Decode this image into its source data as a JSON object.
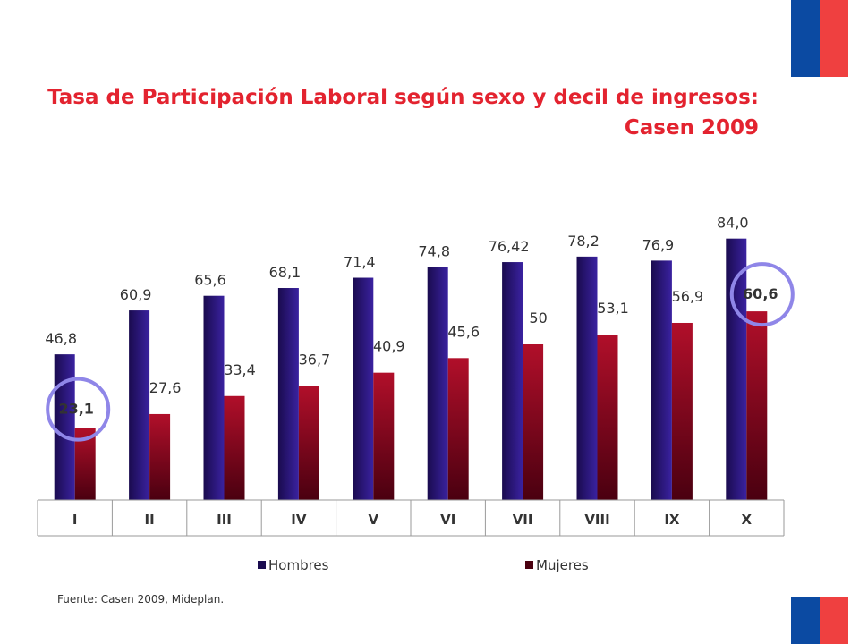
{
  "title": {
    "line1": "Tasa de Participación Laboral según sexo y decil de ingresos:",
    "line2": "Casen 2009"
  },
  "source": "Fuente: Casen 2009, Mideplan.",
  "colors": {
    "title": "#e3232f",
    "hombres_dark": "#1a0b4f",
    "hombres_light": "#3a22a0",
    "mujeres_dark": "#4a0010",
    "mujeres_light": "#b10f2a",
    "highlight_circle": "#8f86e8",
    "flag_blue": "#0b4aa2",
    "flag_red": "#ef4040"
  },
  "chart_data": {
    "type": "bar",
    "categories": [
      "I",
      "II",
      "III",
      "IV",
      "V",
      "VI",
      "VII",
      "VIII",
      "IX",
      "X"
    ],
    "series": [
      {
        "name": "Hombres",
        "values": [
          46.8,
          60.9,
          65.6,
          68.1,
          71.4,
          74.8,
          76.42,
          78.2,
          76.9,
          84.0
        ],
        "labels": [
          "46,8",
          "60,9",
          "65,6",
          "68,1",
          "71,4",
          "74,8",
          "76,42",
          "78,2",
          "76,9",
          "84,0"
        ]
      },
      {
        "name": "Mujeres",
        "values": [
          23.1,
          27.6,
          33.4,
          36.7,
          40.9,
          45.6,
          50,
          53.1,
          56.9,
          60.6
        ],
        "labels": [
          "23,1",
          "27,6",
          "33,4",
          "36,7",
          "40,9",
          "45,6",
          "50",
          "53,1",
          "56,9",
          "60,6"
        ]
      }
    ],
    "highlighted": [
      {
        "series": "Mujeres",
        "category": "I",
        "label": "23,1"
      },
      {
        "series": "Mujeres",
        "category": "X",
        "label": "60,6"
      }
    ],
    "ylim": [
      0,
      100
    ],
    "grid": false,
    "legend": "bottom",
    "xlabel": "",
    "ylabel": ""
  }
}
